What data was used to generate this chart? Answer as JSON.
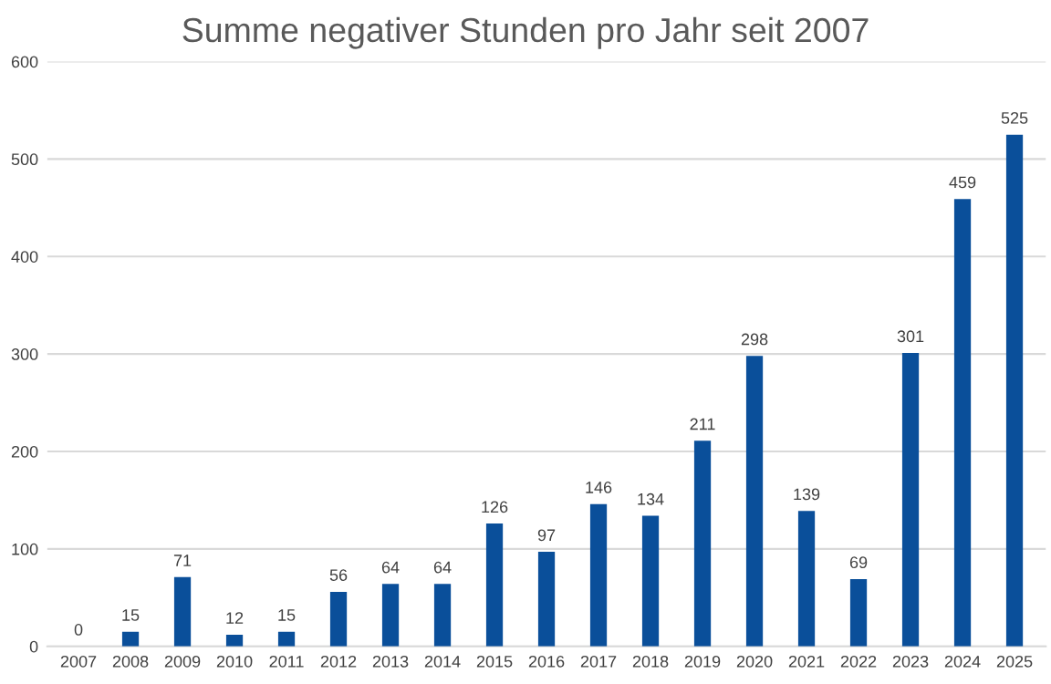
{
  "chart_data": {
    "type": "bar",
    "title": "Summe negativer Stunden pro Jahr seit 2007",
    "categories": [
      "2007",
      "2008",
      "2009",
      "2010",
      "2011",
      "2012",
      "2013",
      "2014",
      "2015",
      "2016",
      "2017",
      "2018",
      "2019",
      "2020",
      "2021",
      "2022",
      "2023",
      "2024",
      "2025"
    ],
    "values": [
      0,
      15,
      71,
      12,
      15,
      56,
      64,
      64,
      126,
      97,
      146,
      134,
      211,
      298,
      139,
      69,
      301,
      459,
      525
    ],
    "color": "#0a4f9a",
    "ylim": [
      0,
      600
    ],
    "yticks": [
      0,
      100,
      200,
      300,
      400,
      500,
      600
    ],
    "grid": "y",
    "data_labels": true
  }
}
